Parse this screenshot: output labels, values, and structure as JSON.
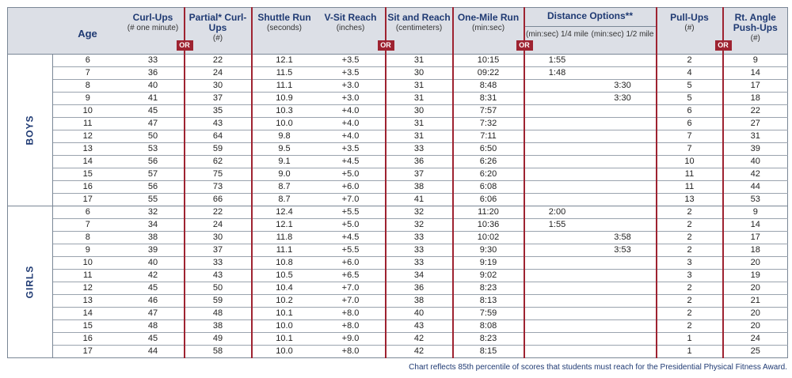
{
  "headers": {
    "age": "Age",
    "curl_ups": {
      "title": "Curl-Ups",
      "sub": "(# one minute)"
    },
    "or": "OR",
    "partial_curl_ups": {
      "title": "Partial* Curl-Ups",
      "sub": "(#)"
    },
    "shuttle_run": {
      "title": "Shuttle Run",
      "sub": "(seconds)"
    },
    "v_sit": {
      "title": "V-Sit Reach",
      "sub": "(inches)"
    },
    "sit_reach": {
      "title": "Sit and Reach",
      "sub": "(centimeters)"
    },
    "one_mile": {
      "title": "One-Mile Run",
      "sub": "(min:sec)"
    },
    "distance": {
      "title": "Distance Options**",
      "quarter": "(min:sec) 1/4 mile",
      "half": "(min:sec) 1/2 mile"
    },
    "pull_ups": {
      "title": "Pull-Ups",
      "sub": "(#)"
    },
    "push_ups": {
      "title": "Rt. Angle Push-Ups",
      "sub": "(#)"
    }
  },
  "groups": [
    {
      "label": "BOYS",
      "rows": [
        [
          "6",
          "33",
          "22",
          "12.1",
          "+3.5",
          "31",
          "10:15",
          "1:55",
          "",
          "2",
          "9"
        ],
        [
          "7",
          "36",
          "24",
          "11.5",
          "+3.5",
          "30",
          "09:22",
          "1:48",
          "",
          "4",
          "14"
        ],
        [
          "8",
          "40",
          "30",
          "11.1",
          "+3.0",
          "31",
          "8:48",
          "",
          "3:30",
          "5",
          "17"
        ],
        [
          "9",
          "41",
          "37",
          "10.9",
          "+3.0",
          "31",
          "8:31",
          "",
          "3:30",
          "5",
          "18"
        ],
        [
          "10",
          "45",
          "35",
          "10.3",
          "+4.0",
          "30",
          "7:57",
          "",
          "",
          "6",
          "22"
        ],
        [
          "11",
          "47",
          "43",
          "10.0",
          "+4.0",
          "31",
          "7:32",
          "",
          "",
          "6",
          "27"
        ],
        [
          "12",
          "50",
          "64",
          "9.8",
          "+4.0",
          "31",
          "7:11",
          "",
          "",
          "7",
          "31"
        ],
        [
          "13",
          "53",
          "59",
          "9.5",
          "+3.5",
          "33",
          "6:50",
          "",
          "",
          "7",
          "39"
        ],
        [
          "14",
          "56",
          "62",
          "9.1",
          "+4.5",
          "36",
          "6:26",
          "",
          "",
          "10",
          "40"
        ],
        [
          "15",
          "57",
          "75",
          "9.0",
          "+5.0",
          "37",
          "6:20",
          "",
          "",
          "11",
          "42"
        ],
        [
          "16",
          "56",
          "73",
          "8.7",
          "+6.0",
          "38",
          "6:08",
          "",
          "",
          "11",
          "44"
        ],
        [
          "17",
          "55",
          "66",
          "8.7",
          "+7.0",
          "41",
          "6:06",
          "",
          "",
          "13",
          "53"
        ]
      ]
    },
    {
      "label": "GIRLS",
      "rows": [
        [
          "6",
          "32",
          "22",
          "12.4",
          "+5.5",
          "32",
          "11:20",
          "2:00",
          "",
          "2",
          "9"
        ],
        [
          "7",
          "34",
          "24",
          "12.1",
          "+5.0",
          "32",
          "10:36",
          "1:55",
          "",
          "2",
          "14"
        ],
        [
          "8",
          "38",
          "30",
          "11.8",
          "+4.5",
          "33",
          "10:02",
          "",
          "3:58",
          "2",
          "17"
        ],
        [
          "9",
          "39",
          "37",
          "11.1",
          "+5.5",
          "33",
          "9:30",
          "",
          "3:53",
          "2",
          "18"
        ],
        [
          "10",
          "40",
          "33",
          "10.8",
          "+6.0",
          "33",
          "9:19",
          "",
          "",
          "3",
          "20"
        ],
        [
          "11",
          "42",
          "43",
          "10.5",
          "+6.5",
          "34",
          "9:02",
          "",
          "",
          "3",
          "19"
        ],
        [
          "12",
          "45",
          "50",
          "10.4",
          "+7.0",
          "36",
          "8:23",
          "",
          "",
          "2",
          "20"
        ],
        [
          "13",
          "46",
          "59",
          "10.2",
          "+7.0",
          "38",
          "8:13",
          "",
          "",
          "2",
          "21"
        ],
        [
          "14",
          "47",
          "48",
          "10.1",
          "+8.0",
          "40",
          "7:59",
          "",
          "",
          "2",
          "20"
        ],
        [
          "15",
          "48",
          "38",
          "10.0",
          "+8.0",
          "43",
          "8:08",
          "",
          "",
          "2",
          "20"
        ],
        [
          "16",
          "45",
          "49",
          "10.1",
          "+9.0",
          "42",
          "8:23",
          "",
          "",
          "1",
          "24"
        ],
        [
          "17",
          "44",
          "58",
          "10.0",
          "+8.0",
          "42",
          "8:15",
          "",
          "",
          "1",
          "25"
        ]
      ]
    }
  ],
  "footnote": "Chart reflects 85th percentile of scores that students must reach for the Presidential Physical Fitness Award."
}
